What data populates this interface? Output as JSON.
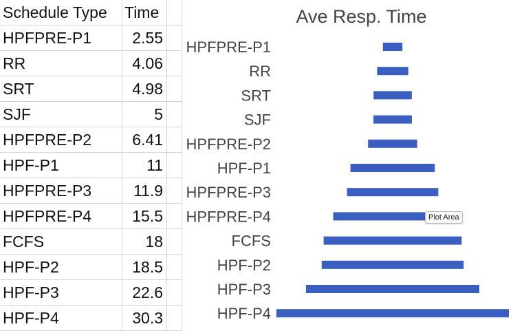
{
  "table": {
    "headers": [
      "Schedule Type",
      "Time"
    ],
    "rows": [
      {
        "type": "HPFPRE-P1",
        "time": "2.55"
      },
      {
        "type": "RR",
        "time": "4.06"
      },
      {
        "type": "SRT",
        "time": "4.98"
      },
      {
        "type": "SJF",
        "time": "5"
      },
      {
        "type": "HPFPRE-P2",
        "time": "6.41"
      },
      {
        "type": "HPF-P1",
        "time": "11"
      },
      {
        "type": "HPFPRE-P3",
        "time": "11.9"
      },
      {
        "type": "HPFPRE-P4",
        "time": "15.5"
      },
      {
        "type": "FCFS",
        "time": "18"
      },
      {
        "type": "HPF-P2",
        "time": "18.5"
      },
      {
        "type": "HPF-P3",
        "time": "22.6"
      },
      {
        "type": "HPF-P4",
        "time": "30.3"
      }
    ]
  },
  "chart_data": {
    "type": "bar",
    "orientation": "horizontal",
    "style": "centered funnel",
    "title": "Ave Resp. Time",
    "categories": [
      "HPFPRE-P1",
      "RR",
      "SRT",
      "SJF",
      "HPFPRE-P2",
      "HPF-P1",
      "HPFPRE-P3",
      "HPFPRE-P4",
      "FCFS",
      "HPF-P2",
      "HPF-P3",
      "HPF-P4"
    ],
    "values": [
      2.55,
      4.06,
      4.98,
      5,
      6.41,
      11,
      11.9,
      15.5,
      18,
      18.5,
      22.6,
      30.3
    ],
    "xlim": [
      0,
      30.3
    ],
    "bar_color": "#3a5fc0",
    "grid": false,
    "legend": "none"
  },
  "tooltip": {
    "text": "Plot Area"
  },
  "colors": {
    "bar": "#3a5fc0",
    "label": "#444444",
    "grid_line": "#d4d4d4"
  }
}
